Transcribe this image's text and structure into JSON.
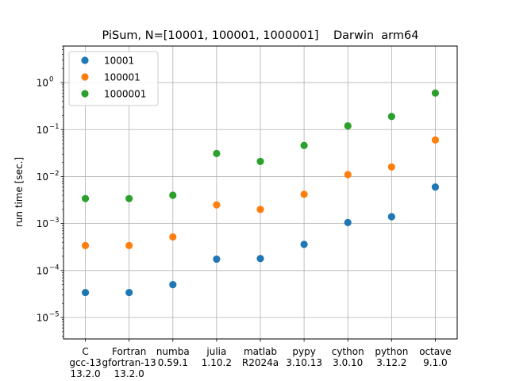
{
  "chart_data": {
    "type": "scatter",
    "title": "PiSum, N=[10001, 100001, 1000001]    Darwin  arm64",
    "xlabel": "",
    "ylabel": "run time [sec.]",
    "yscale": "log",
    "ylim": [
      3.5e-06,
      6.0
    ],
    "grid": true,
    "legend_position": "top-left",
    "categories": [
      [
        "C",
        "gcc-13",
        "13.2.0"
      ],
      [
        "Fortran",
        "gfortran-13",
        "13.2.0"
      ],
      [
        "numba",
        "0.59.1"
      ],
      [
        "julia",
        "1.10.2"
      ],
      [
        "matlab",
        "R2024a"
      ],
      [
        "pypy",
        "3.10.13"
      ],
      [
        "cython",
        "3.0.10"
      ],
      [
        "python",
        "3.12.2"
      ],
      [
        "octave",
        "9.1.0"
      ]
    ],
    "y_ticks": [
      {
        "value": 1e-05,
        "base": "10",
        "exp": "−5"
      },
      {
        "value": 0.0001,
        "base": "10",
        "exp": "−4"
      },
      {
        "value": 0.001,
        "base": "10",
        "exp": "−3"
      },
      {
        "value": 0.01,
        "base": "10",
        "exp": "−2"
      },
      {
        "value": 0.1,
        "base": "10",
        "exp": "−1"
      },
      {
        "value": 1,
        "base": "10",
        "exp": "0"
      }
    ],
    "series": [
      {
        "name": "10001",
        "color": "#1f77b4",
        "values": [
          3.4e-05,
          3.4e-05,
          5e-05,
          0.000175,
          0.00018,
          0.00036,
          0.00105,
          0.0014,
          0.006
        ]
      },
      {
        "name": "100001",
        "color": "#ff7f0e",
        "values": [
          0.00034,
          0.00034,
          0.00052,
          0.0025,
          0.002,
          0.0042,
          0.011,
          0.016,
          0.06
        ]
      },
      {
        "name": "1000001",
        "color": "#2ca02c",
        "values": [
          0.0034,
          0.0034,
          0.004,
          0.031,
          0.021,
          0.046,
          0.12,
          0.19,
          0.6
        ]
      }
    ]
  }
}
